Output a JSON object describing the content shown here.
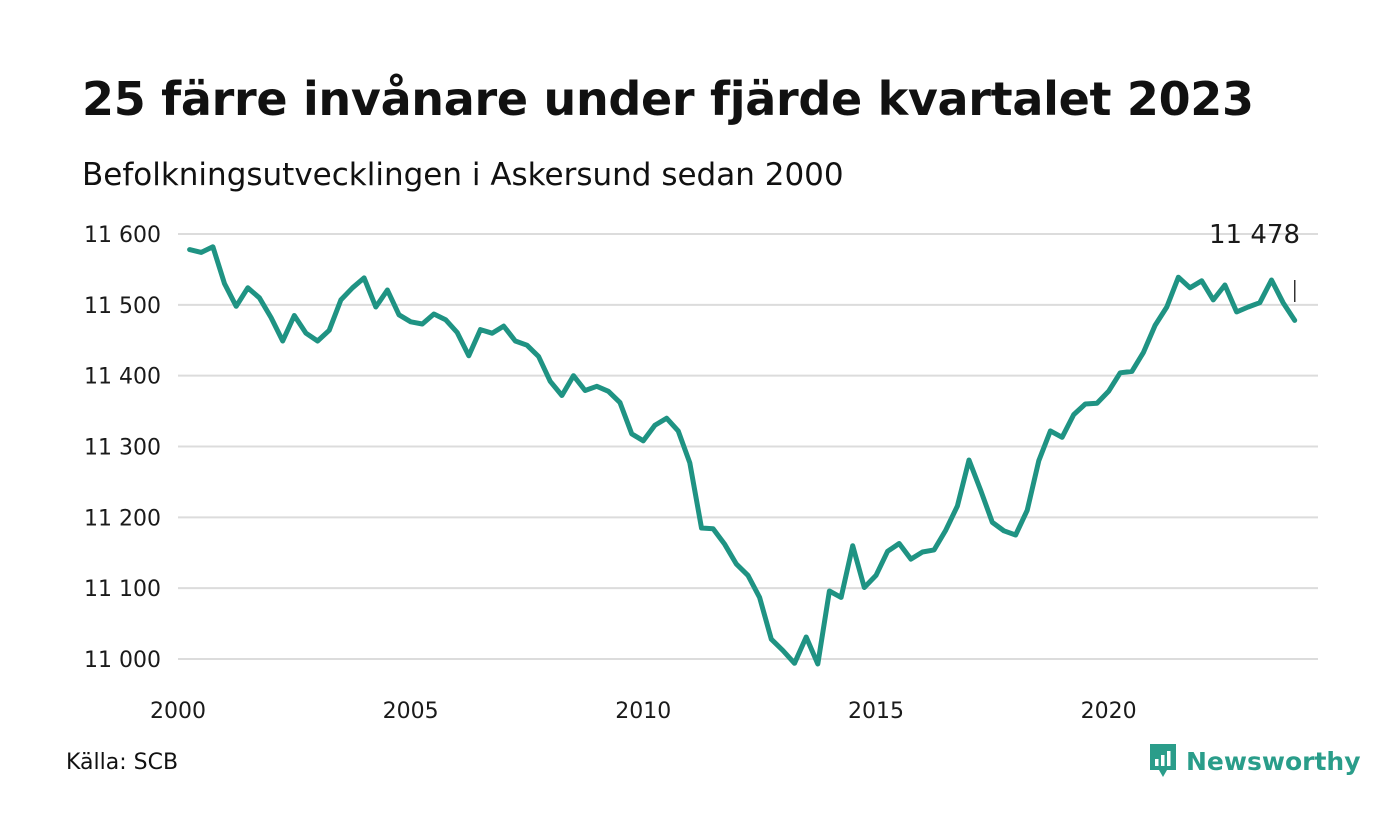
{
  "title": "25 färre invånare under fjärde kvartalet 2023",
  "subtitle": "Befolkningsutvecklingen i Askersund sedan 2000",
  "source": "Källa: SCB",
  "brand": {
    "name": "Newsworthy",
    "icon": "newsworthy-logo-icon",
    "color": "#2a9d8a"
  },
  "colors": {
    "line": "#1f9383",
    "grid": "#dcdcdc",
    "text": "#1a1a1a"
  },
  "chart_data": {
    "type": "line",
    "title": "25 färre invånare under fjärde kvartalet 2023",
    "subtitle": "Befolkningsutvecklingen i Askersund sedan 2000",
    "xlabel": "",
    "ylabel": "",
    "xlim": [
      2000,
      2024.5
    ],
    "ylim": [
      10990,
      11610
    ],
    "grid": true,
    "legend": "none",
    "x_ticks": [
      {
        "value": 2000,
        "label": "2000"
      },
      {
        "value": 2005,
        "label": "2005"
      },
      {
        "value": 2010,
        "label": "2010"
      },
      {
        "value": 2015,
        "label": "2015"
      },
      {
        "value": 2020,
        "label": "2020"
      }
    ],
    "y_ticks": [
      {
        "value": 11000,
        "label": "11 000"
      },
      {
        "value": 11100,
        "label": "11 100"
      },
      {
        "value": 11200,
        "label": "11 200"
      },
      {
        "value": 11300,
        "label": "11 300"
      },
      {
        "value": 11400,
        "label": "11 400"
      },
      {
        "value": 11500,
        "label": "11 500"
      },
      {
        "value": 11600,
        "label": "11 600"
      }
    ],
    "end_label": "11 478",
    "series": [
      {
        "x": [
          2000.25,
          2000.5,
          2000.75,
          2001.0,
          2001.25,
          2001.5,
          2001.75,
          2002.0,
          2002.25,
          2002.5,
          2002.75,
          2003.0,
          2003.25,
          2003.5,
          2003.75,
          2004.0,
          2004.25,
          2004.5,
          2004.75,
          2005.0,
          2005.25,
          2005.5,
          2005.75,
          2006.0,
          2006.25,
          2006.5,
          2006.75,
          2007.0,
          2007.25,
          2007.5,
          2007.75,
          2008.0,
          2008.25,
          2008.5,
          2008.75,
          2009.0,
          2009.25,
          2009.5,
          2009.75,
          2010.0,
          2010.25,
          2010.5,
          2010.75,
          2011.0,
          2011.25,
          2011.5,
          2011.75,
          2012.0,
          2012.25,
          2012.5,
          2012.75,
          2013.0,
          2013.25,
          2013.5,
          2013.75,
          2014.0,
          2014.25,
          2014.5,
          2014.75,
          2015.0,
          2015.25,
          2015.5,
          2015.75,
          2016.0,
          2016.25,
          2016.5,
          2016.75,
          2017.0,
          2017.25,
          2017.5,
          2017.75,
          2018.0,
          2018.25,
          2018.5,
          2018.75,
          2019.0,
          2019.25,
          2019.5,
          2019.75,
          2020.0,
          2020.25,
          2020.5,
          2020.75,
          2021.0,
          2021.25,
          2021.5,
          2021.75,
          2022.0,
          2022.25,
          2022.5,
          2022.75,
          2023.0,
          2023.25,
          2023.5,
          2023.75,
          2024.0
        ],
        "values": [
          11578,
          11574,
          11582,
          11530,
          11498,
          11524,
          11510,
          11482,
          11449,
          11485,
          11460,
          11449,
          11464,
          11507,
          11524,
          11538,
          11497,
          11521,
          11486,
          11476,
          11473,
          11487,
          11479,
          11461,
          11428,
          11465,
          11460,
          11470,
          11449,
          11443,
          11427,
          11392,
          11372,
          11400,
          11379,
          11385,
          11378,
          11362,
          11318,
          11308,
          11330,
          11340,
          11322,
          11277,
          11185,
          11184,
          11162,
          11134,
          11118,
          11087,
          11028,
          11012,
          10994,
          11031,
          10993,
          11096,
          11087,
          11160,
          11101,
          11118,
          11152,
          11163,
          11141,
          11151,
          11154,
          11182,
          11216,
          11281,
          11238,
          11193,
          11181,
          11175,
          11210,
          11280,
          11322,
          11313,
          11345,
          11360,
          11361,
          11378,
          11404,
          11406,
          11433,
          11471,
          11497,
          11539,
          11524,
          11534,
          11507,
          11528,
          11490,
          11497,
          11503,
          11535,
          11503,
          11478
        ]
      }
    ]
  }
}
